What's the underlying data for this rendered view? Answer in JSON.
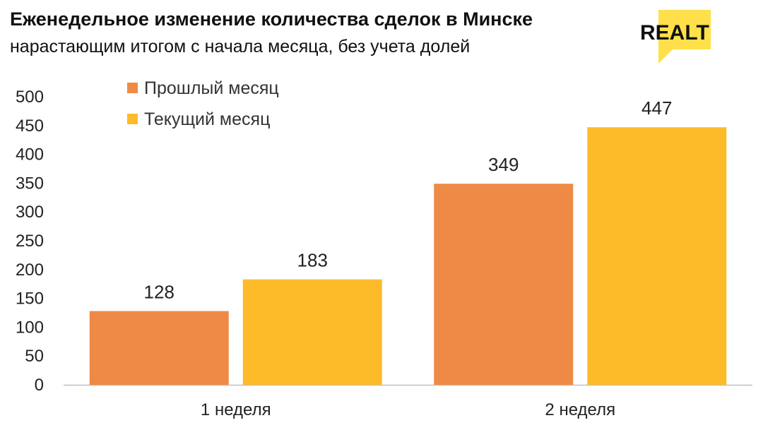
{
  "logo_text": "REALT",
  "colors": {
    "series_prev": "#EE8A45",
    "series_curr": "#FDBB2A",
    "logo_bg": "#FFE04A",
    "axis": "#BFBFBF"
  },
  "chart_data": {
    "type": "bar",
    "title": "Еженедельное изменение количества сделок в Минске",
    "subtitle": "нарастающим итогом с начала месяца, без учета долей",
    "categories": [
      "1 неделя",
      "2 неделя"
    ],
    "series": [
      {
        "name": "Прошлый месяц",
        "values": [
          128,
          349
        ]
      },
      {
        "name": "Текущий месяц",
        "values": [
          183,
          447
        ]
      }
    ],
    "yticks": [
      "0",
      "50",
      "100",
      "150",
      "200",
      "250",
      "300",
      "350",
      "400",
      "450",
      "500"
    ],
    "ylim": [
      0,
      500
    ],
    "grid": false,
    "legend": "top-left",
    "data_labels": true
  }
}
